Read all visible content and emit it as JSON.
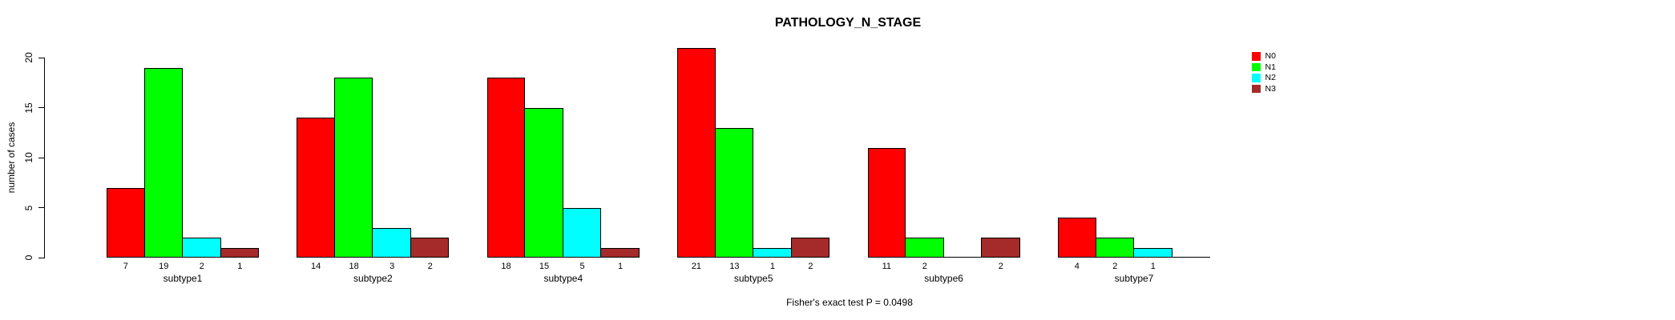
{
  "chart_data": {
    "type": "bar",
    "title": "PATHOLOGY_N_STAGE",
    "ylabel": "number of cases",
    "footer": "Fisher's exact test P = 0.0498",
    "categories": [
      "subtype1",
      "subtype2",
      "subtype4",
      "subtype5",
      "subtype6",
      "subtype7"
    ],
    "series": [
      {
        "name": "N0",
        "color": "#FF0000",
        "values": [
          7,
          14,
          18,
          21,
          11,
          4
        ]
      },
      {
        "name": "N1",
        "color": "#00FF00",
        "values": [
          19,
          18,
          15,
          13,
          2,
          2
        ]
      },
      {
        "name": "N2",
        "color": "#00FFFF",
        "values": [
          2,
          3,
          5,
          1,
          0,
          1
        ]
      },
      {
        "name": "N3",
        "color": "#A52A2A",
        "values": [
          1,
          2,
          1,
          2,
          2,
          0
        ]
      }
    ],
    "bar_value_labels": {
      "subtype1": [
        7,
        19,
        2,
        1
      ],
      "subtype2": [
        14,
        18,
        3,
        2
      ],
      "subtype4": [
        18,
        15,
        5,
        1
      ],
      "subtype5": [
        21,
        13,
        1,
        2
      ],
      "subtype6": [
        11,
        2,
        null,
        2
      ],
      "subtype7": [
        4,
        2,
        1,
        null
      ]
    },
    "yticks": [
      0,
      5,
      10,
      15,
      20
    ],
    "ylim": [
      0,
      20
    ],
    "grid": false,
    "legend_position": "top-right",
    "background_color": "#FFFFFF",
    "text_color": "#000000"
  }
}
